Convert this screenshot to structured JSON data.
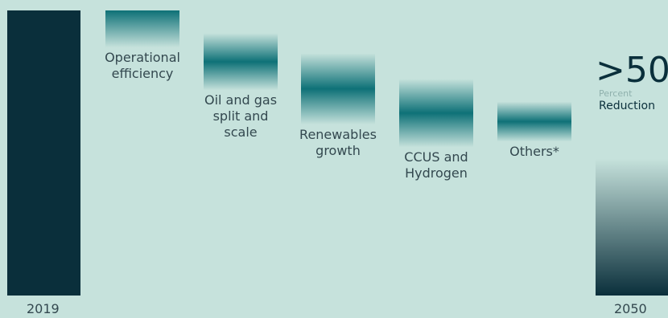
{
  "chart_data": {
    "type": "bar",
    "title": "",
    "start": {
      "label": "2019",
      "value": 100
    },
    "steps": [
      {
        "name": "Operational\nefficiency",
        "from": 100,
        "to": 87
      },
      {
        "name": "Oil and gas\nsplit and\nscale",
        "from": 92,
        "to": 72
      },
      {
        "name": "Renewables\ngrowth",
        "from": 85,
        "to": 60
      },
      {
        "name": "CCUS and\nHydrogen",
        "from": 76,
        "to": 52
      },
      {
        "name": "Others*",
        "from": 68,
        "to": 54
      }
    ],
    "end": {
      "label": "2050",
      "value": 48
    },
    "annotation": {
      "value": ">50",
      "unit": "Percent",
      "label": "Reduction"
    },
    "ylim": [
      0,
      100
    ]
  },
  "colors": {
    "background": "#c6e2dc",
    "dark": "#0a2f3b",
    "teal": "#0e7177"
  }
}
